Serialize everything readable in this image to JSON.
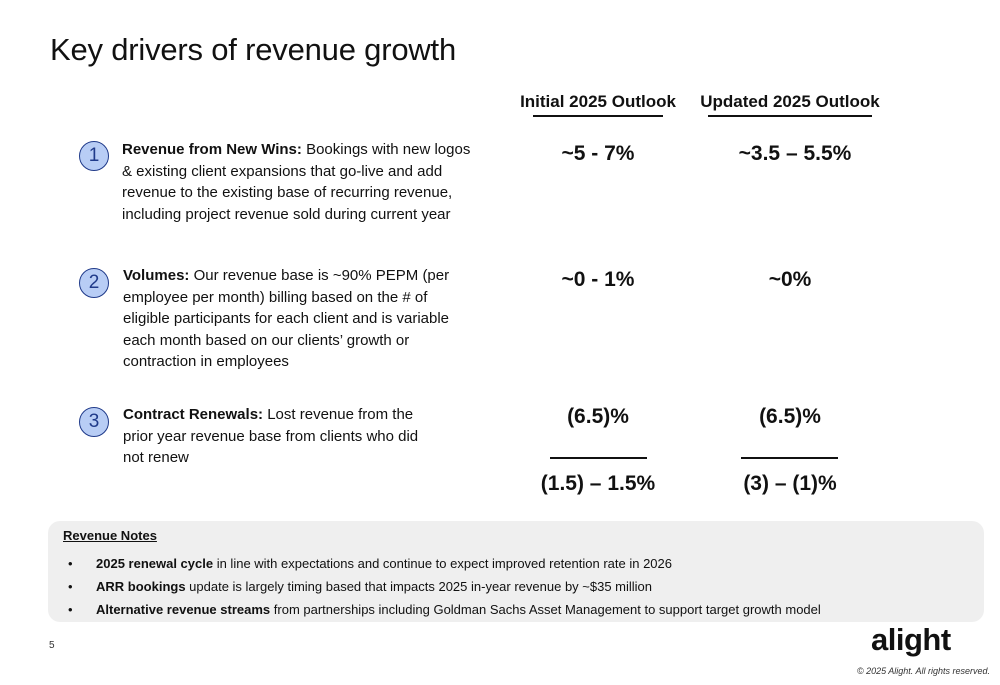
{
  "title": "Key drivers of revenue growth",
  "columns": {
    "initial": "Initial 2025 Outlook",
    "updated": "Updated 2025 Outlook"
  },
  "drivers": [
    {
      "number": "1",
      "label": "Revenue from New Wins:",
      "text_lines": [
        " Bookings with new logos",
        "& existing client expansions that go-live and add",
        "revenue to the existing base of recurring revenue,",
        "including project revenue sold during current year"
      ],
      "initial": "~5 - 7%",
      "updated": "~3.5 – 5.5%"
    },
    {
      "number": "2",
      "label": "Volumes:",
      "text_lines": [
        " Our revenue base is ~90% PEPM (per",
        "employee per month) billing based on the # of",
        "eligible participants for each client and is variable",
        "each month based on our clients’ growth or",
        "contraction in employees"
      ],
      "initial": "~0 - 1%",
      "updated": "~0%"
    },
    {
      "number": "3",
      "label": "Contract Renewals:",
      "text_lines": [
        " Lost revenue from the",
        "prior year revenue base from clients who did",
        "not renew"
      ],
      "initial": "(6.5)%",
      "updated": "(6.5)%"
    }
  ],
  "totals": {
    "initial": "(1.5) – 1.5%",
    "updated": "(3) – (1)%"
  },
  "notes": {
    "title": "Revenue Notes",
    "items": [
      {
        "bullet": "•",
        "bold": "2025 renewal cycle",
        "text": " in line with expectations and continue to expect improved retention rate in 2026"
      },
      {
        "bullet": "•",
        "bold": "ARR bookings",
        "text": " update is largely timing based that impacts 2025 in-year revenue by ~$35 million"
      },
      {
        "bullet": "•",
        "bold": "Alternative revenue streams",
        "text": " from partnerships including Goldman Sachs Asset Management to support target growth model"
      }
    ]
  },
  "footer": {
    "page_number": "5",
    "logo": "alight",
    "copyright": "© 2025 Alight. All rights reserved."
  },
  "colors": {
    "circle_fill": "#b8cdf5",
    "circle_border": "#1f3a8a",
    "notes_bg": "#efefef"
  }
}
